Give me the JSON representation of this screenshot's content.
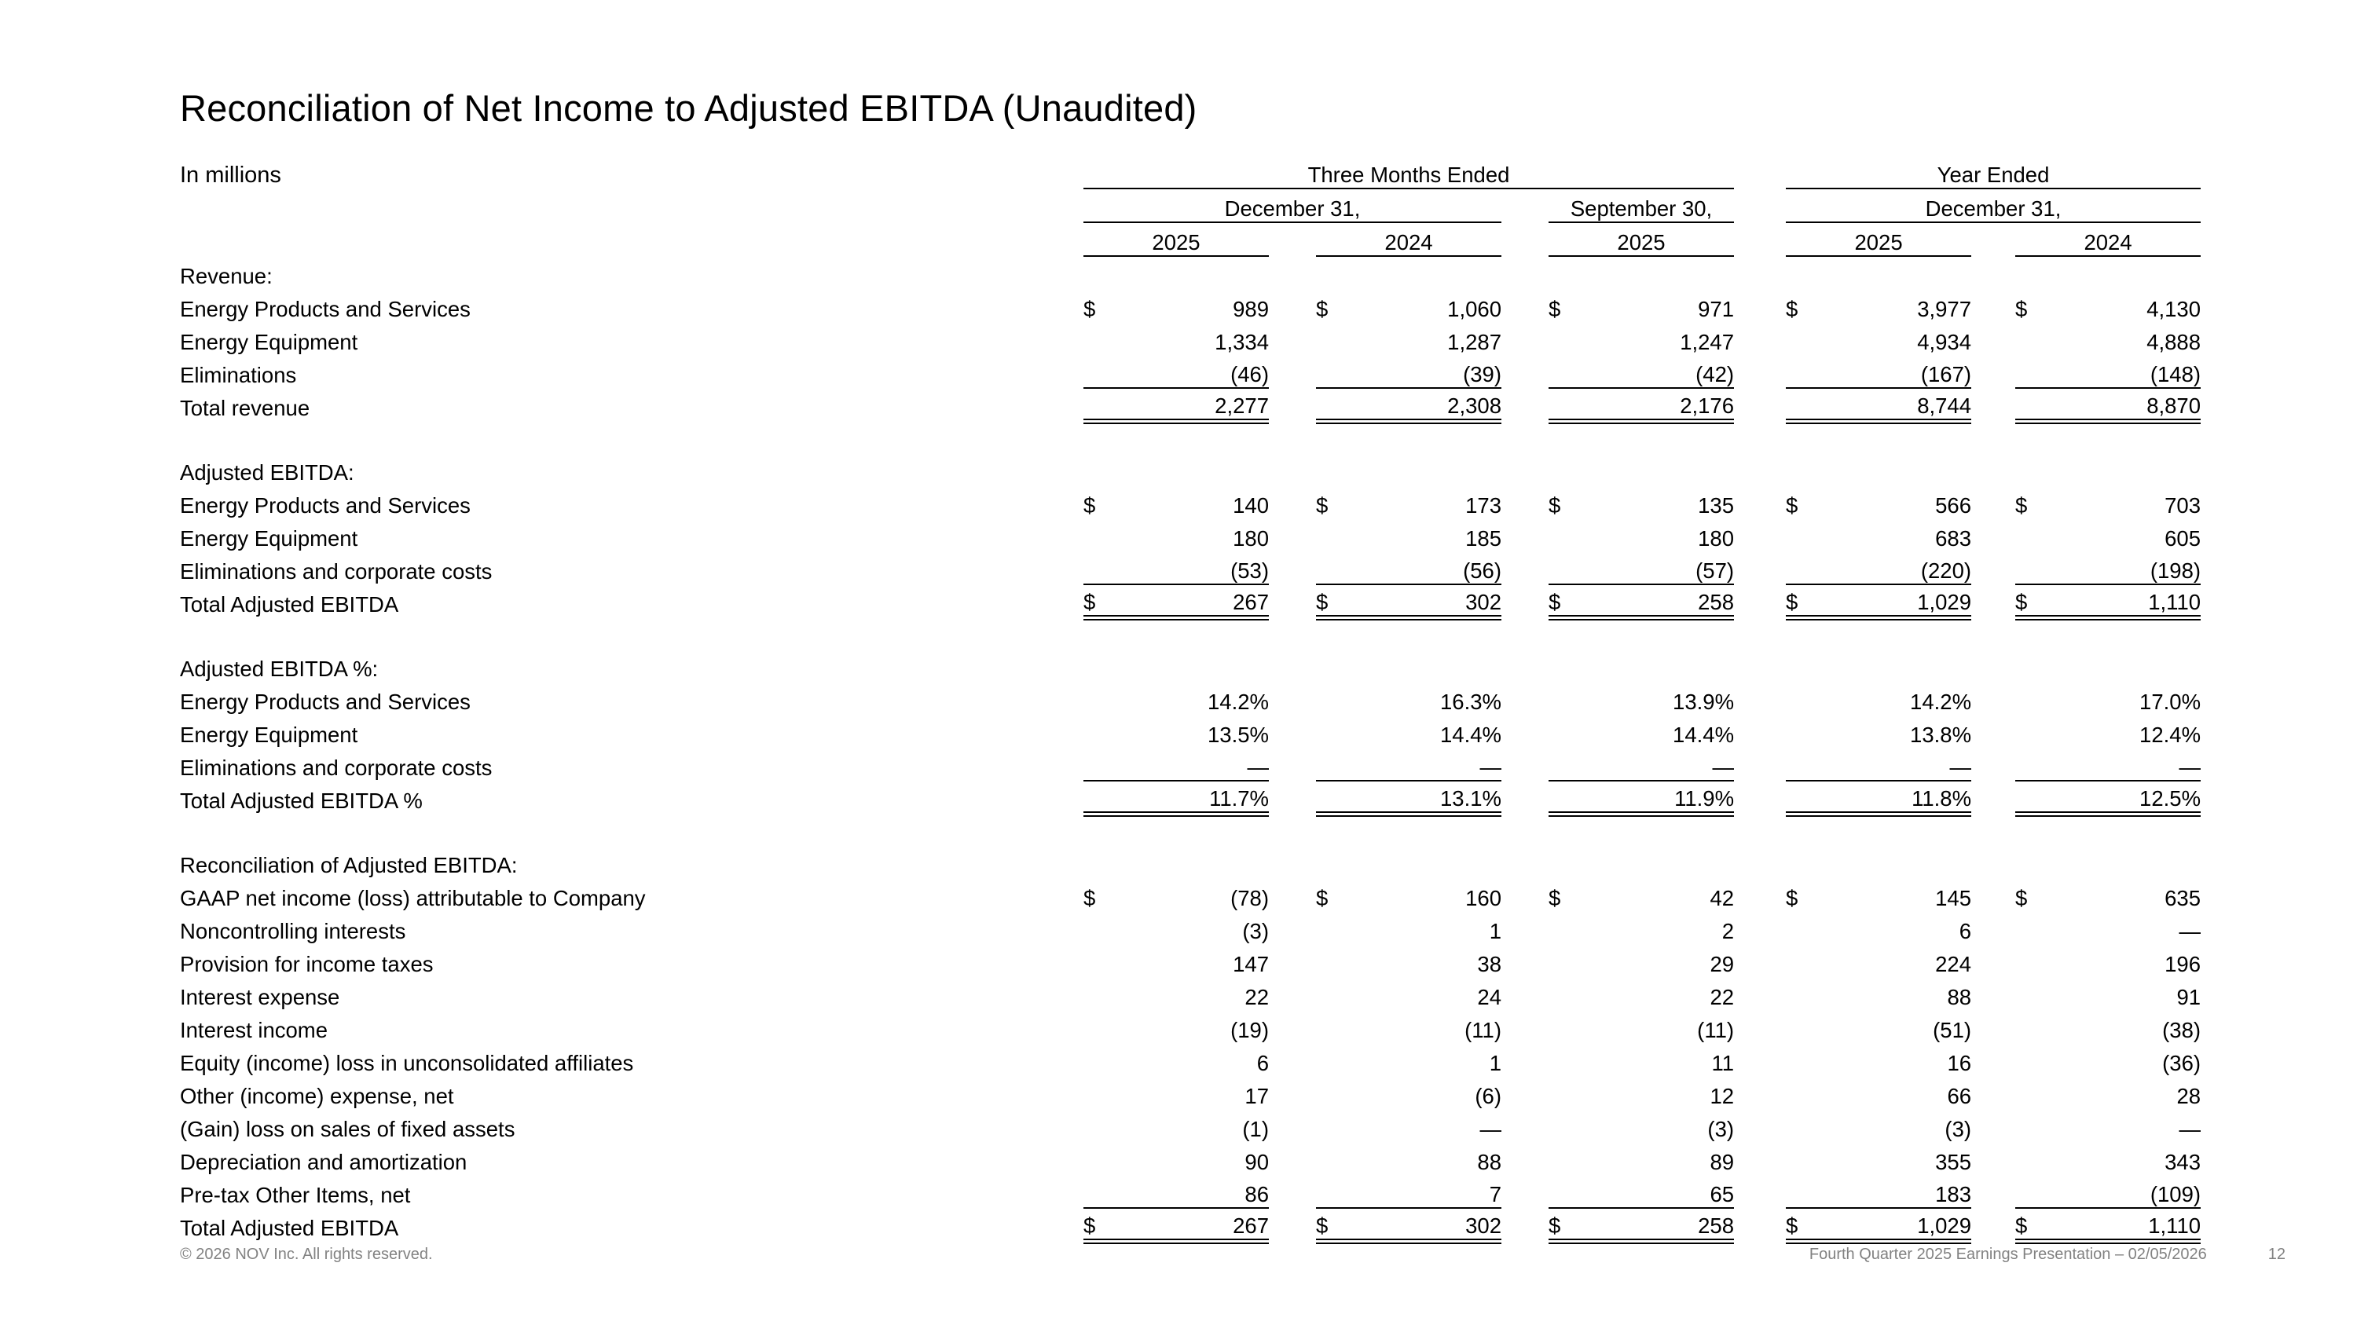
{
  "page": {
    "title": "Reconciliation of Net Income to Adjusted EBITDA (Unaudited)",
    "units_label": "In millions"
  },
  "table": {
    "dollar_sign": "$",
    "col_groups": [
      {
        "label": "Three Months Ended"
      },
      {
        "label": "Year Ended"
      }
    ],
    "sub_groups": [
      {
        "label": "December 31,"
      },
      {
        "label": "September 30,"
      },
      {
        "label": "December 31,"
      }
    ],
    "years": [
      "2025",
      "2024",
      "2025",
      "2025",
      "2024"
    ],
    "sections": [
      {
        "heading": "Revenue:",
        "rows": [
          {
            "label": "Energy Products and Services",
            "indent": 1,
            "dollar": true,
            "values": [
              "989",
              "1,060",
              "971",
              "3,977",
              "4,130"
            ]
          },
          {
            "label": "Energy Equipment",
            "indent": 1,
            "dollar": false,
            "values": [
              "1,334",
              "1,287",
              "1,247",
              "4,934",
              "4,888"
            ]
          },
          {
            "label": "Eliminations",
            "indent": 1,
            "dollar": false,
            "rule": "single",
            "values": [
              "(46)",
              "(39)",
              "(42)",
              "(167)",
              "(148)"
            ]
          },
          {
            "label": "Total revenue",
            "indent": 2,
            "dollar": false,
            "rule": "double",
            "values": [
              "2,277",
              "2,308",
              "2,176",
              "8,744",
              "8,870"
            ]
          }
        ]
      },
      {
        "heading": "Adjusted EBITDA:",
        "rows": [
          {
            "label": "Energy Products and Services",
            "indent": 1,
            "dollar": true,
            "values": [
              "140",
              "173",
              "135",
              "566",
              "703"
            ]
          },
          {
            "label": "Energy Equipment",
            "indent": 1,
            "dollar": false,
            "values": [
              "180",
              "185",
              "180",
              "683",
              "605"
            ]
          },
          {
            "label": "Eliminations and corporate costs",
            "indent": 1,
            "dollar": false,
            "rule": "single",
            "values": [
              "(53)",
              "(56)",
              "(57)",
              "(220)",
              "(198)"
            ]
          },
          {
            "label": "Total Adjusted EBITDA",
            "indent": 0,
            "dollar": true,
            "rule": "double",
            "values": [
              "267",
              "302",
              "258",
              "1,029",
              "1,110"
            ]
          }
        ]
      },
      {
        "heading": "Adjusted EBITDA %:",
        "rows": [
          {
            "label": "Energy Products and Services",
            "indent": 1,
            "dollar": false,
            "values": [
              "14.2%",
              "16.3%",
              "13.9%",
              "14.2%",
              "17.0%"
            ]
          },
          {
            "label": "Energy Equipment",
            "indent": 1,
            "dollar": false,
            "values": [
              "13.5%",
              "14.4%",
              "14.4%",
              "13.8%",
              "12.4%"
            ]
          },
          {
            "label": "Eliminations and corporate costs",
            "indent": 1,
            "dollar": false,
            "rule": "single",
            "values": [
              "—",
              "—",
              "—",
              "—",
              "—"
            ]
          },
          {
            "label": "Total Adjusted EBITDA %",
            "indent": 0,
            "dollar": false,
            "rule": "double",
            "values": [
              "11.7%",
              "13.1%",
              "11.9%",
              "11.8%",
              "12.5%"
            ]
          }
        ]
      },
      {
        "heading": "Reconciliation of Adjusted EBITDA:",
        "rows": [
          {
            "label": "GAAP net income (loss) attributable to Company",
            "indent": 1,
            "dollar": true,
            "values": [
              "(78)",
              "160",
              "42",
              "145",
              "635"
            ]
          },
          {
            "label": "Noncontrolling interests",
            "indent": 1,
            "dollar": false,
            "values": [
              "(3)",
              "1",
              "2",
              "6",
              "—"
            ]
          },
          {
            "label": "Provision for income taxes",
            "indent": 1,
            "dollar": false,
            "values": [
              "147",
              "38",
              "29",
              "224",
              "196"
            ]
          },
          {
            "label": "Interest expense",
            "indent": 1,
            "dollar": false,
            "values": [
              "22",
              "24",
              "22",
              "88",
              "91"
            ]
          },
          {
            "label": "Interest income",
            "indent": 1,
            "dollar": false,
            "values": [
              "(19)",
              "(11)",
              "(11)",
              "(51)",
              "(38)"
            ]
          },
          {
            "label": "Equity (income) loss in unconsolidated affiliates",
            "indent": 1,
            "dollar": false,
            "values": [
              "6",
              "1",
              "11",
              "16",
              "(36)"
            ]
          },
          {
            "label": "Other (income) expense, net",
            "indent": 1,
            "dollar": false,
            "values": [
              "17",
              "(6)",
              "12",
              "66",
              "28"
            ]
          },
          {
            "label": "(Gain) loss on sales of fixed assets",
            "indent": 1,
            "dollar": false,
            "values": [
              "(1)",
              "—",
              "(3)",
              "(3)",
              "—"
            ]
          },
          {
            "label": "Depreciation and amortization",
            "indent": 1,
            "dollar": false,
            "values": [
              "90",
              "88",
              "89",
              "355",
              "343"
            ]
          },
          {
            "label": "Pre-tax Other Items, net",
            "indent": 1,
            "dollar": false,
            "rule": "single",
            "values": [
              "86",
              "7",
              "65",
              "183",
              "(109)"
            ]
          },
          {
            "label": "Total Adjusted EBITDA",
            "indent": 0,
            "dollar": true,
            "rule": "double",
            "values": [
              "267",
              "302",
              "258",
              "1,029",
              "1,110"
            ]
          }
        ]
      }
    ]
  },
  "footer": {
    "copyright": "© 2026 NOV Inc. All rights reserved.",
    "presentation": "Fourth Quarter 2025 Earnings Presentation – 02/05/2026",
    "page_number": "12"
  }
}
